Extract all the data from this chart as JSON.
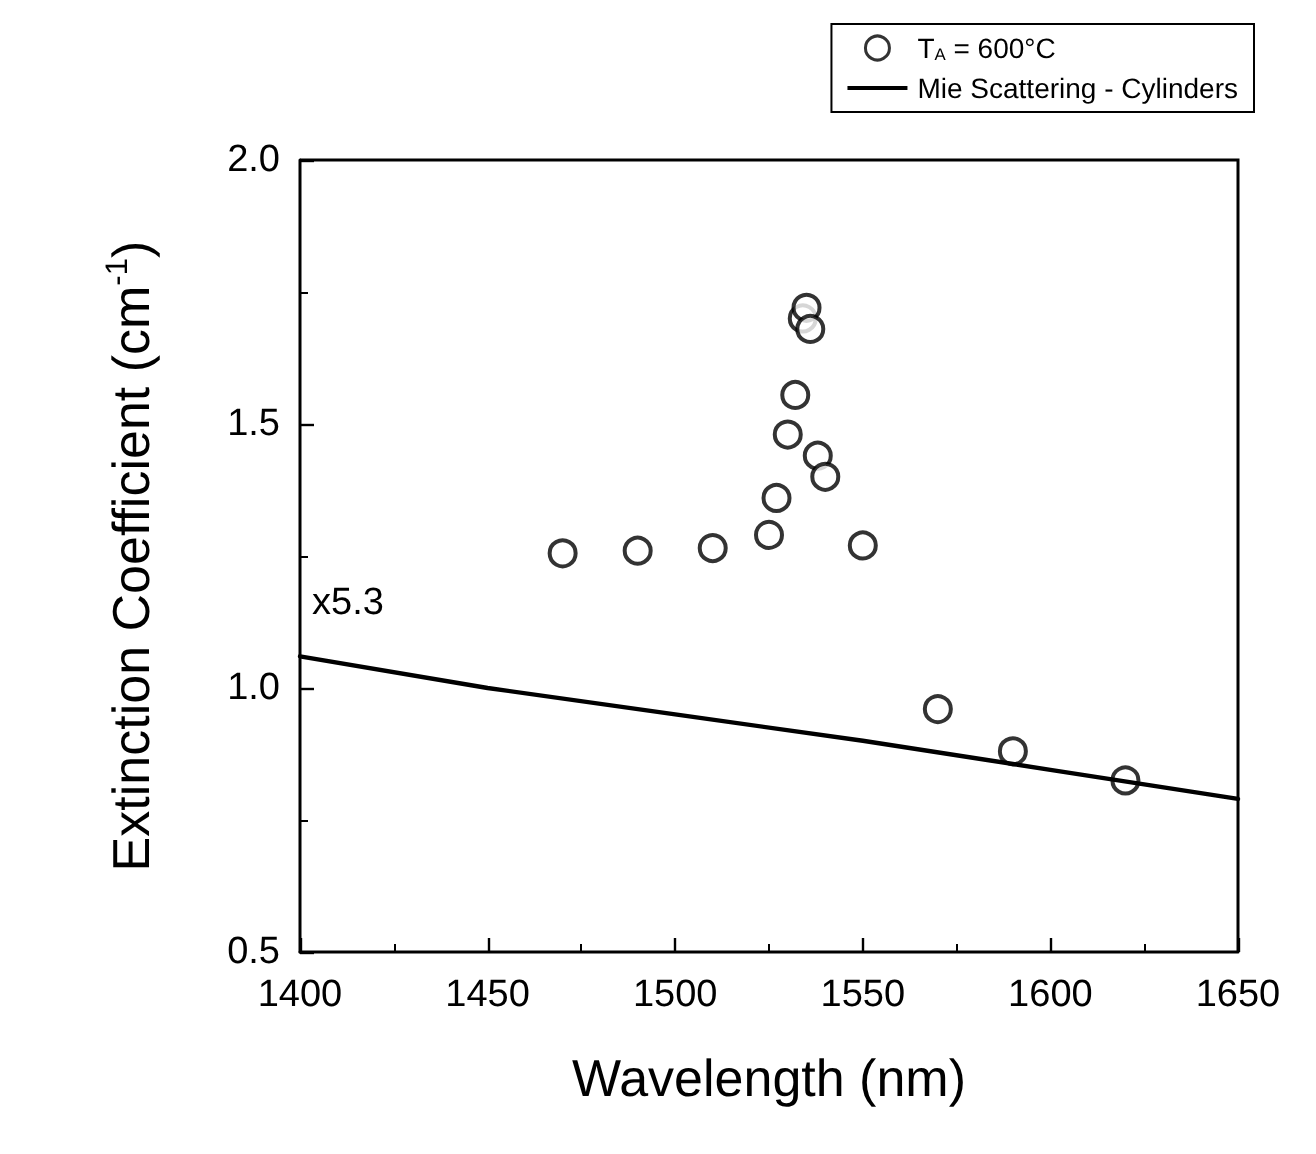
{
  "chart_data": {
    "type": "scatter",
    "xlabel": "Wavelength (nm)",
    "ylabel": "Extinction Coefficient (cm$^{-1}$)",
    "xlim": [
      1400,
      1650
    ],
    "xticks": [
      1400,
      1450,
      1500,
      1550,
      1600,
      1650
    ],
    "ylim": [
      0.5,
      2.0
    ],
    "yticks": [
      0.5,
      {
        "value": 1,
        "label": "1.0"
      },
      1.5,
      {
        "value": 2,
        "label": "2.0"
      }
    ],
    "grid": false,
    "legend": "top right",
    "annotations": [
      "x5.3"
    ],
    "series": [
      {
        "name": "T$_{A}$ = 600°C",
        "marker": "circle",
        "color": "#000000",
        "x": [
          1470,
          1490,
          1510,
          1525,
          1527,
          1530,
          1532,
          1534,
          1535,
          1536,
          1538,
          1540,
          1550,
          1570,
          1590,
          1620
        ],
        "values": [
          1.255,
          1.26,
          1.265,
          1.29,
          1.36,
          1.48,
          1.555,
          1.7,
          1.72,
          1.68,
          1.44,
          1.4,
          1.27,
          0.96,
          0.88,
          0.825
        ]
      },
      {
        "name": "Mie Scattering - Cylinders",
        "type": "line",
        "marker": "none",
        "line_style": "solid",
        "color": "#000000",
        "x": [
          1400,
          1450,
          1500,
          1550,
          1600,
          1650
        ],
        "values": [
          1.06,
          1.0,
          0.95,
          0.9,
          0.845,
          0.79
        ]
      }
    ]
  }
}
